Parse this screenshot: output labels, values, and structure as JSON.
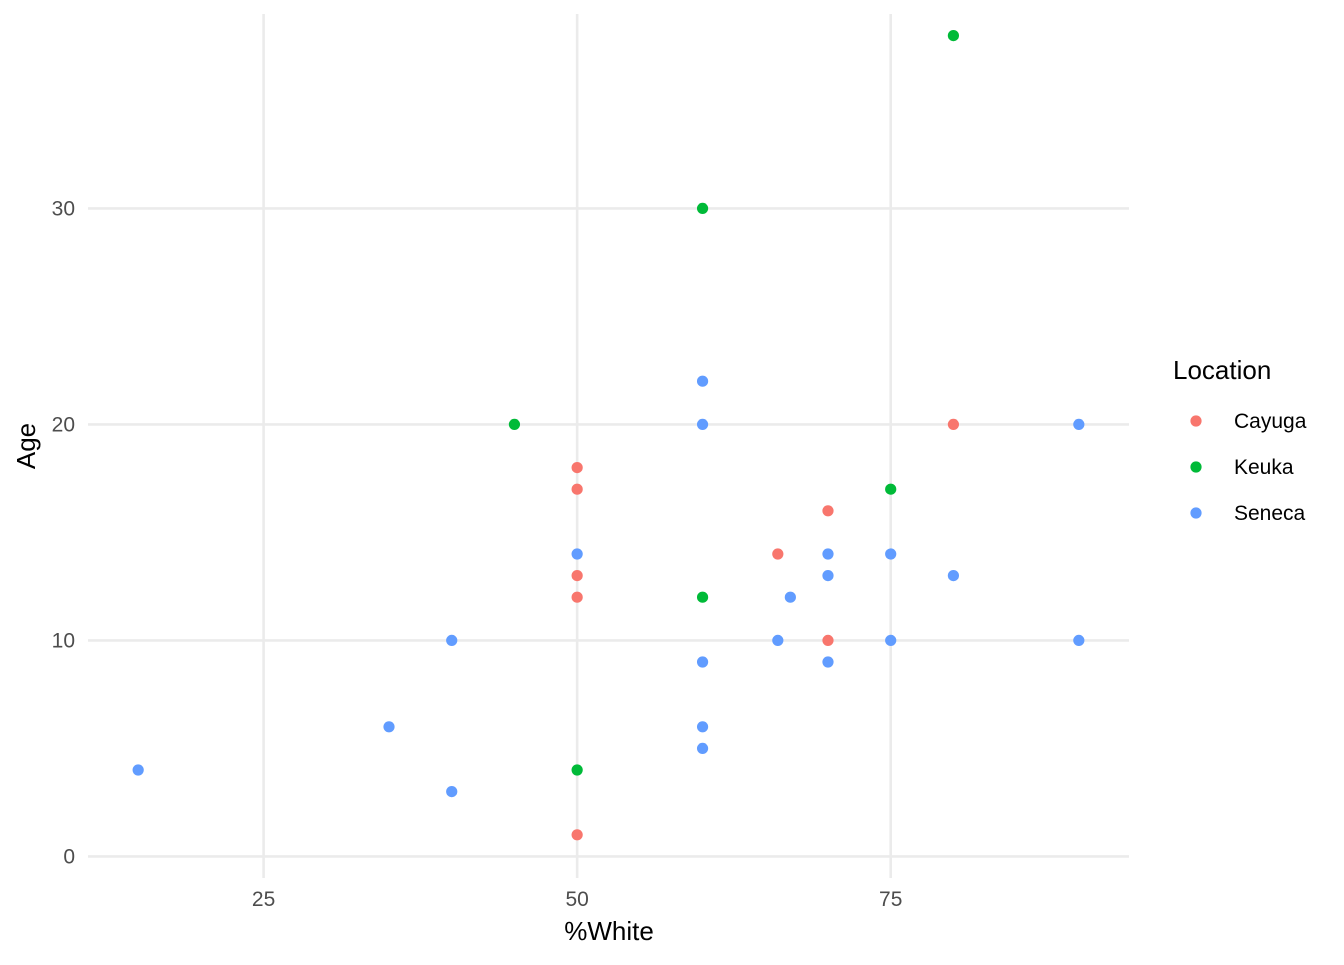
{
  "chart_data": {
    "type": "scatter",
    "xlabel": "%White",
    "ylabel": "Age",
    "xlim": [
      11,
      94
    ],
    "ylim": [
      -1,
      39
    ],
    "x_ticks": [
      25,
      50,
      75
    ],
    "y_ticks": [
      0,
      10,
      20,
      30
    ],
    "x_tick_labels": [
      "25",
      "50",
      "75"
    ],
    "y_tick_labels": [
      "0",
      "10",
      "20",
      "30"
    ],
    "grid": true,
    "legend": {
      "title": "Location",
      "position": "right"
    },
    "series": [
      {
        "name": "Cayuga",
        "color": "#F8766D",
        "points": [
          [
            50,
            18
          ],
          [
            50,
            17
          ],
          [
            50,
            13
          ],
          [
            50,
            12
          ],
          [
            50,
            1
          ],
          [
            66,
            14
          ],
          [
            70,
            16
          ],
          [
            70,
            10
          ],
          [
            80,
            20
          ]
        ]
      },
      {
        "name": "Keuka",
        "color": "#00BA38",
        "points": [
          [
            45,
            20
          ],
          [
            50,
            4
          ],
          [
            60,
            30
          ],
          [
            60,
            12
          ],
          [
            75,
            17
          ],
          [
            80,
            38
          ]
        ]
      },
      {
        "name": "Seneca",
        "color": "#619CFF",
        "points": [
          [
            15,
            4
          ],
          [
            35,
            6
          ],
          [
            40,
            10
          ],
          [
            40,
            3
          ],
          [
            50,
            14
          ],
          [
            60,
            22
          ],
          [
            60,
            20
          ],
          [
            60,
            9
          ],
          [
            60,
            6
          ],
          [
            60,
            5
          ],
          [
            66,
            10
          ],
          [
            67,
            12
          ],
          [
            70,
            14
          ],
          [
            70,
            13
          ],
          [
            70,
            9
          ],
          [
            75,
            14
          ],
          [
            75,
            10
          ],
          [
            80,
            13
          ],
          [
            90,
            20
          ],
          [
            90,
            10
          ]
        ]
      }
    ]
  }
}
